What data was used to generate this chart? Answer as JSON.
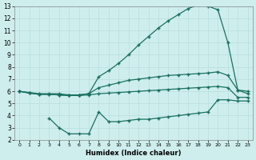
{
  "xlabel": "Humidex (Indice chaleur)",
  "bg_color": "#ceeeed",
  "line_color": "#1a7060",
  "grid_color": "#b8dede",
  "xlim": [
    -0.5,
    23.5
  ],
  "ylim": [
    2,
    13
  ],
  "xticks": [
    0,
    1,
    2,
    3,
    4,
    5,
    6,
    7,
    8,
    9,
    10,
    11,
    12,
    13,
    14,
    15,
    16,
    17,
    18,
    19,
    20,
    21,
    22,
    23
  ],
  "yticks": [
    2,
    3,
    4,
    5,
    6,
    7,
    8,
    9,
    10,
    11,
    12,
    13
  ],
  "curve1_x": [
    0,
    1,
    2,
    3,
    4,
    5,
    6,
    7,
    8,
    9,
    10,
    11,
    12,
    13,
    14,
    15,
    16,
    17,
    18,
    19,
    20,
    21,
    22,
    23
  ],
  "curve1_y": [
    6.0,
    5.9,
    5.8,
    5.8,
    5.8,
    5.7,
    5.7,
    5.8,
    7.2,
    7.7,
    8.3,
    9.0,
    9.8,
    10.5,
    11.2,
    11.8,
    12.3,
    12.8,
    13.1,
    13.0,
    12.7,
    10.0,
    6.1,
    6.0
  ],
  "curve2_x": [
    0,
    1,
    2,
    3,
    4,
    5,
    6,
    7,
    8,
    9,
    10,
    11,
    12,
    13,
    14,
    15,
    16,
    17,
    18,
    19,
    20,
    21,
    22,
    23
  ],
  "curve2_y": [
    6.0,
    5.85,
    5.75,
    5.75,
    5.7,
    5.65,
    5.7,
    5.8,
    6.3,
    6.5,
    6.7,
    6.9,
    7.0,
    7.1,
    7.2,
    7.3,
    7.35,
    7.4,
    7.45,
    7.5,
    7.6,
    7.3,
    6.1,
    5.8
  ],
  "curve3_x": [
    0,
    1,
    2,
    3,
    4,
    5,
    6,
    7,
    8,
    9,
    10,
    11,
    12,
    13,
    14,
    15,
    16,
    17,
    18,
    19,
    20,
    21,
    22,
    23
  ],
  "curve3_y": [
    6.0,
    5.85,
    5.75,
    5.75,
    5.7,
    5.65,
    5.65,
    5.7,
    5.8,
    5.85,
    5.9,
    5.95,
    6.0,
    6.05,
    6.1,
    6.15,
    6.2,
    6.25,
    6.3,
    6.35,
    6.4,
    6.3,
    5.5,
    5.5
  ],
  "curve4_x": [
    3,
    4,
    5,
    6,
    7,
    8,
    9,
    10,
    11,
    12,
    13,
    14,
    15,
    16,
    17,
    18,
    19,
    20,
    21,
    22,
    23
  ],
  "curve4_y": [
    3.8,
    3.0,
    2.5,
    2.5,
    2.5,
    4.3,
    3.5,
    3.5,
    3.6,
    3.7,
    3.7,
    3.8,
    3.9,
    4.0,
    4.1,
    4.2,
    4.3,
    5.3,
    5.3,
    5.2,
    5.2
  ]
}
